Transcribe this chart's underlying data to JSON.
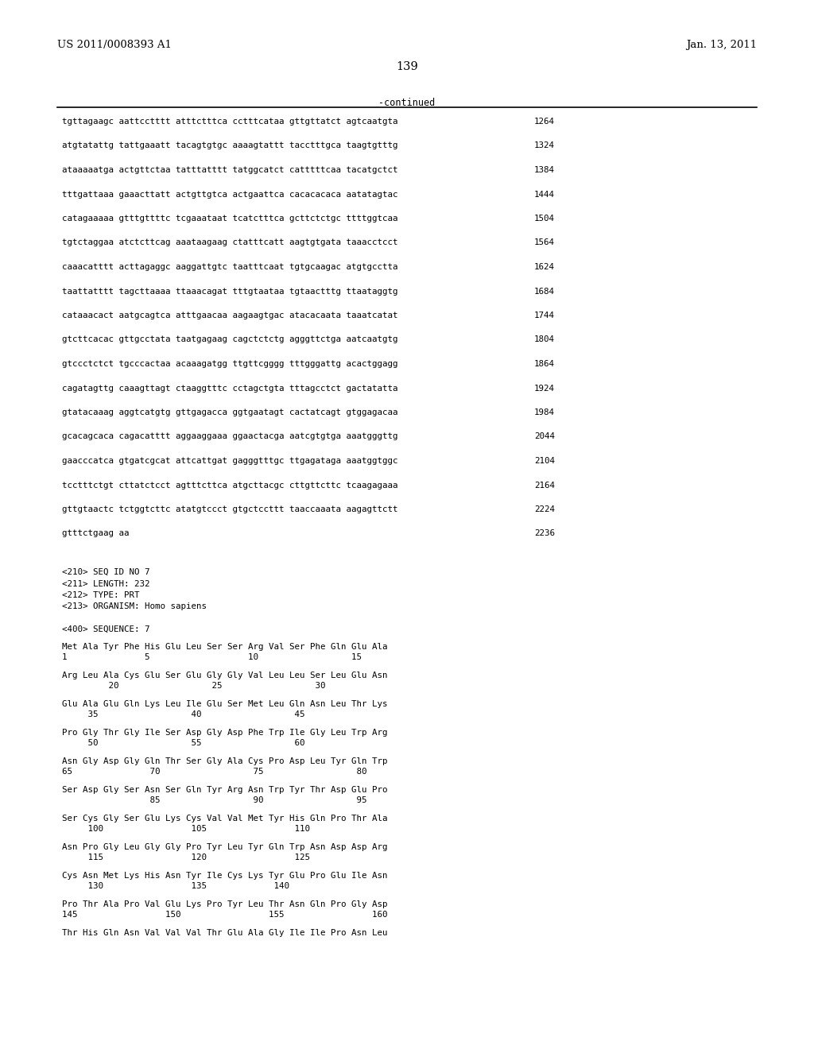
{
  "header_left": "US 2011/0008393 A1",
  "header_right": "Jan. 13, 2011",
  "page_number": "139",
  "continued_label": "-continued",
  "background_color": "#ffffff",
  "text_color": "#000000",
  "sequence_lines": [
    [
      "tgttagaagc aattcctttt atttctttca cctttcataa gttgttatct agtcaatgta",
      "1264"
    ],
    [
      "atgtatattg tattgaaatt tacagtgtgc aaaagtattt tacctttgca taagtgtttg",
      "1324"
    ],
    [
      "ataaaaatga actgttctaa tatttatttt tatggcatct catttttcaa tacatgctct",
      "1384"
    ],
    [
      "tttgattaaa gaaacttatt actgttgtca actgaattca cacacacaca aatatagtac",
      "1444"
    ],
    [
      "catagaaaaa gtttgttttc tcgaaataat tcatctttca gcttctctgc ttttggtcaa",
      "1504"
    ],
    [
      "tgtctaggaa atctcttcag aaataagaag ctatttcatt aagtgtgata taaacctcct",
      "1564"
    ],
    [
      "caaacatttt acttagaggc aaggattgtc taatttcaat tgtgcaagac atgtgcctta",
      "1624"
    ],
    [
      "taattatttt tagcttaaaa ttaaacagat tttgtaataa tgtaactttg ttaataggtg",
      "1684"
    ],
    [
      "cataaacact aatgcagtca atttgaacaa aagaagtgac atacacaata taaatcatat",
      "1744"
    ],
    [
      "gtcttcacac gttgcctata taatgagaag cagctctctg agggttctga aatcaatgtg",
      "1804"
    ],
    [
      "gtccctctct tgcccactaa acaaagatgg ttgttcgggg tttgggattg acactggagg",
      "1864"
    ],
    [
      "cagatagttg caaagttagt ctaaggtttc cctagctgta tttagcctct gactatatta",
      "1924"
    ],
    [
      "gtatacaaag aggtcatgtg gttgagacca ggtgaatagt cactatcagt gtggagacaa",
      "1984"
    ],
    [
      "gcacagcaca cagacatttt aggaaggaaa ggaactacga aatcgtgtga aaatgggttg",
      "2044"
    ],
    [
      "gaacccatca gtgatcgcat attcattgat gagggtttgc ttgagataga aaatggtggc",
      "2104"
    ],
    [
      "tcctttctgt cttatctcct agtttcttca atgcttacgc cttgttcttc tcaagagaaa",
      "2164"
    ],
    [
      "gttgtaactc tctggtcttc atatgtccct gtgctccttt taaccaaata aagagttctt",
      "2224"
    ],
    [
      "gtttctgaag aa",
      "2236"
    ]
  ],
  "metadata_lines": [
    "<210> SEQ ID NO 7",
    "<211> LENGTH: 232",
    "<212> TYPE: PRT",
    "<213> ORGANISM: Homo sapiens"
  ],
  "sequence_label": "<400> SEQUENCE: 7",
  "protein_lines": [
    [
      "Met Ala Tyr Phe His Glu Leu Ser Ser Arg Val Ser Phe Gln Glu Ala",
      false
    ],
    [
      "1               5                   10                  15",
      true
    ],
    [
      "Arg Leu Ala Cys Glu Ser Glu Gly Gly Val Leu Leu Ser Leu Glu Asn",
      false
    ],
    [
      "         20                  25                  30",
      true
    ],
    [
      "Glu Ala Glu Gln Lys Leu Ile Glu Ser Met Leu Gln Asn Leu Thr Lys",
      false
    ],
    [
      "     35                  40                  45",
      true
    ],
    [
      "Pro Gly Thr Gly Ile Ser Asp Gly Asp Phe Trp Ile Gly Leu Trp Arg",
      false
    ],
    [
      "     50                  55                  60",
      true
    ],
    [
      "Asn Gly Asp Gly Gln Thr Ser Gly Ala Cys Pro Asp Leu Tyr Gln Trp",
      false
    ],
    [
      "65               70                  75                  80",
      true
    ],
    [
      "Ser Asp Gly Ser Asn Ser Gln Tyr Arg Asn Trp Tyr Thr Asp Glu Pro",
      false
    ],
    [
      "                 85                  90                  95",
      true
    ],
    [
      "Ser Cys Gly Ser Glu Lys Cys Val Val Met Tyr His Gln Pro Thr Ala",
      false
    ],
    [
      "     100                 105                 110",
      true
    ],
    [
      "Asn Pro Gly Leu Gly Gly Pro Tyr Leu Tyr Gln Trp Asn Asp Asp Arg",
      false
    ],
    [
      "     115                 120                 125",
      true
    ],
    [
      "Cys Asn Met Lys His Asn Tyr Ile Cys Lys Tyr Glu Pro Glu Ile Asn",
      false
    ],
    [
      "     130                 135             140",
      true
    ],
    [
      "Pro Thr Ala Pro Val Glu Lys Pro Tyr Leu Thr Asn Gln Pro Gly Asp",
      false
    ],
    [
      "145                 150                 155                 160",
      true
    ],
    [
      "Thr His Gln Asn Val Val Val Thr Glu Ala Gly Ile Ile Pro Asn Leu",
      false
    ]
  ]
}
